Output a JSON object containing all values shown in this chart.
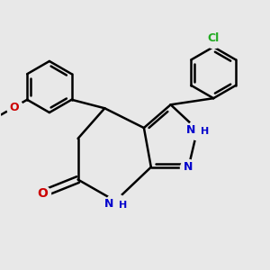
{
  "background_color": "#e8e8e8",
  "bond_color": "#000000",
  "fig_width": 3.0,
  "fig_height": 3.0,
  "dpi": 100,
  "xlim": [
    1.5,
    9.0
  ],
  "ylim": [
    2.5,
    9.5
  ],
  "n_color": "#0000cc",
  "o_color": "#cc0000",
  "cl_color": "#22aa22",
  "bond_lw": 1.8,
  "font_size": 9
}
